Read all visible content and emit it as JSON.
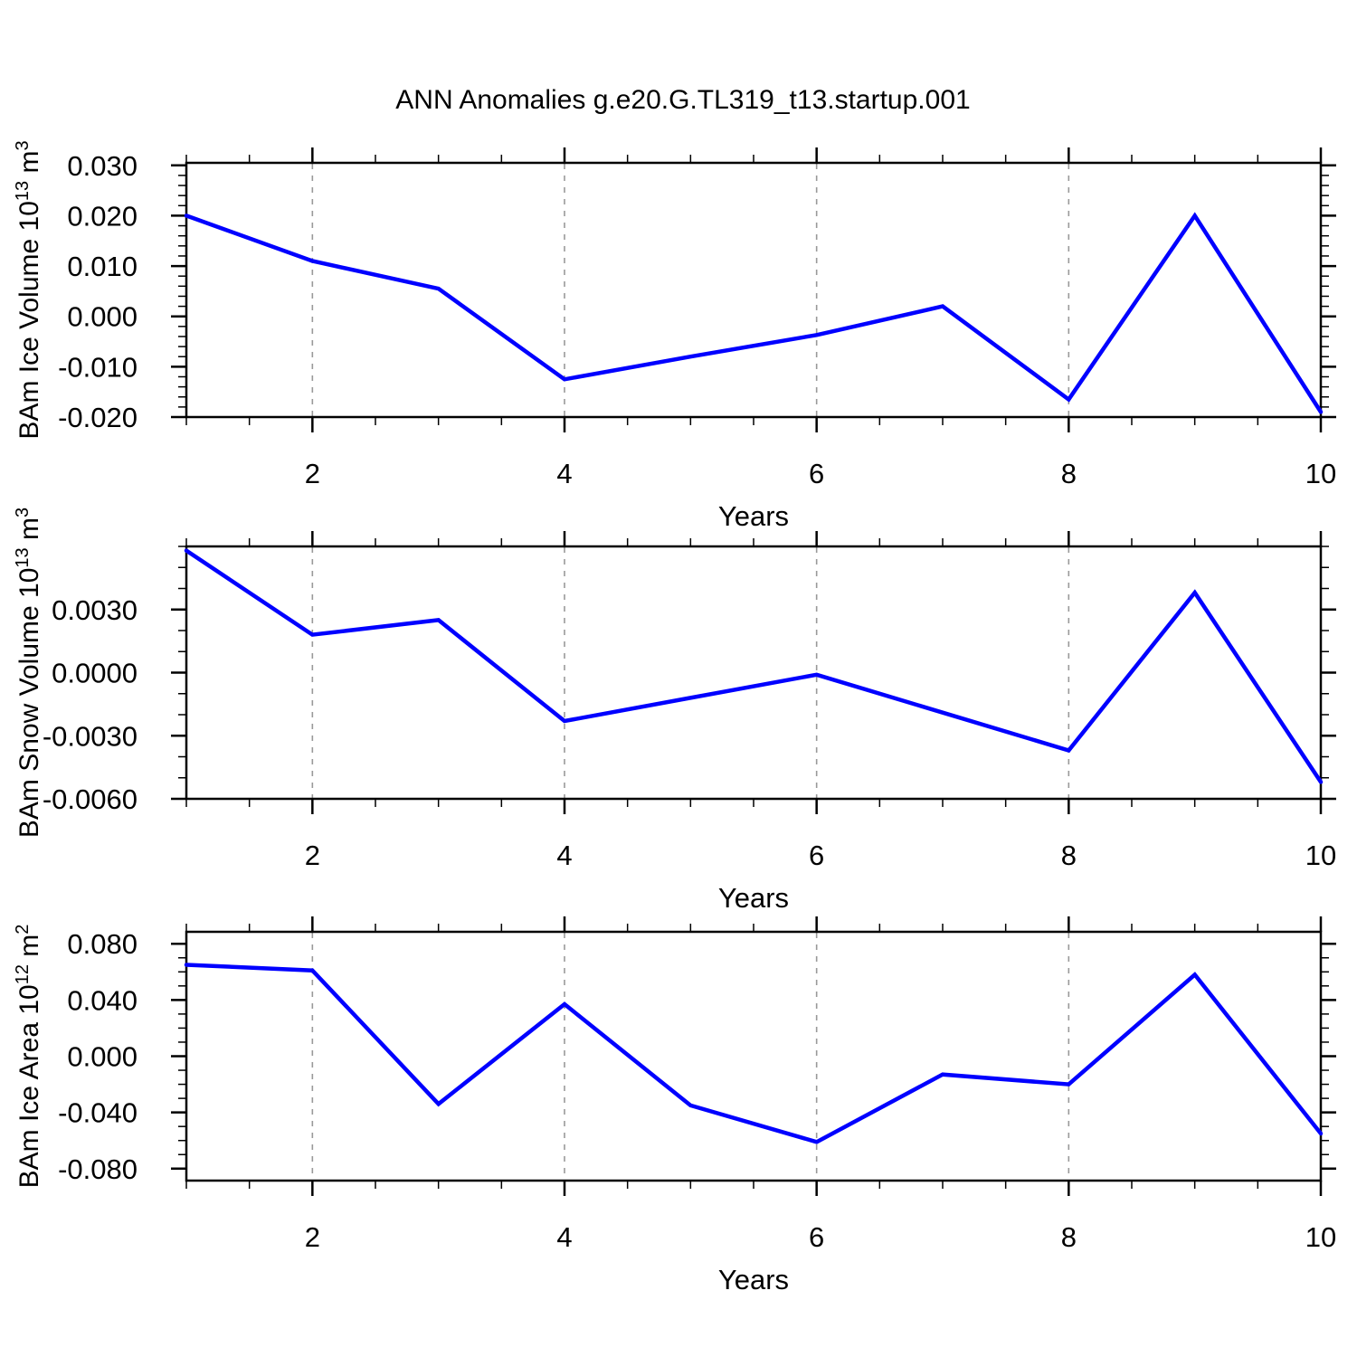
{
  "title": "ANN Anomalies g.e20.G.TL319_t13.startup.001",
  "colors": {
    "series": "#0000ff",
    "grid": "#999999",
    "axis": "#000000",
    "text": "#000000"
  },
  "chart_data": [
    {
      "type": "line",
      "name": "ice-volume",
      "x": [
        1,
        2,
        3,
        4,
        5,
        6,
        7,
        8,
        9,
        10
      ],
      "y": [
        0.02,
        0.011,
        0.0055,
        -0.0125,
        -0.008,
        -0.0037,
        0.002,
        -0.0165,
        0.02,
        -0.019
      ],
      "xlabel": "Years",
      "xlim": [
        1,
        10
      ],
      "xminor_step": 0.5,
      "grid_x": [
        2,
        4,
        6,
        8
      ],
      "xticks": [
        {
          "v": 2,
          "label": "2"
        },
        {
          "v": 4,
          "label": "4"
        },
        {
          "v": 6,
          "label": "6"
        },
        {
          "v": 8,
          "label": "8"
        },
        {
          "v": 10,
          "label": "10"
        }
      ],
      "ylim": [
        -0.02,
        0.0305
      ],
      "yminor_step": 0.002,
      "yticks": [
        {
          "v": 0.03,
          "label": "0.030"
        },
        {
          "v": 0.02,
          "label": "0.020"
        },
        {
          "v": 0.01,
          "label": "0.010"
        },
        {
          "v": 0.0,
          "label": "0.000"
        },
        {
          "v": -0.01,
          "label": "-0.010"
        },
        {
          "v": -0.02,
          "label": "-0.020"
        }
      ],
      "ylabel_segments": [
        {
          "t": "BAm Ice Volume 10"
        },
        {
          "t": "13",
          "sup": true
        },
        {
          "t": " m"
        },
        {
          "t": "3",
          "sup": true
        }
      ]
    },
    {
      "type": "line",
      "name": "snow-volume",
      "x": [
        1,
        2,
        3,
        4,
        5,
        6,
        7,
        8,
        9,
        10
      ],
      "y": [
        0.0058,
        0.0018,
        0.0025,
        -0.0023,
        -0.0012,
        -0.0001,
        -0.0019,
        -0.0037,
        0.0038,
        -0.0052
      ],
      "xlabel": "Years",
      "xlim": [
        1,
        10
      ],
      "xminor_step": 0.5,
      "grid_x": [
        2,
        4,
        6,
        8
      ],
      "xticks": [
        {
          "v": 2,
          "label": "2"
        },
        {
          "v": 4,
          "label": "4"
        },
        {
          "v": 6,
          "label": "6"
        },
        {
          "v": 8,
          "label": "8"
        },
        {
          "v": 10,
          "label": "10"
        }
      ],
      "ylim": [
        -0.006,
        0.006
      ],
      "yminor_step": 0.001,
      "yticks": [
        {
          "v": 0.003,
          "label": "0.0030"
        },
        {
          "v": 0.0,
          "label": "0.0000"
        },
        {
          "v": -0.003,
          "label": "-0.0030"
        },
        {
          "v": -0.006,
          "label": "-0.0060"
        }
      ],
      "ylabel_segments": [
        {
          "t": "BAm Snow Volume 10"
        },
        {
          "t": "13",
          "sup": true
        },
        {
          "t": " m"
        },
        {
          "t": "3",
          "sup": true
        }
      ]
    },
    {
      "type": "line",
      "name": "ice-area",
      "x": [
        1,
        2,
        3,
        4,
        5,
        6,
        7,
        8,
        9,
        10
      ],
      "y": [
        0.065,
        0.061,
        -0.034,
        0.037,
        -0.035,
        -0.061,
        -0.013,
        -0.02,
        0.058,
        -0.055
      ],
      "xlabel": "Years",
      "xlim": [
        1,
        10
      ],
      "xminor_step": 0.5,
      "grid_x": [
        2,
        4,
        6,
        8
      ],
      "xticks": [
        {
          "v": 2,
          "label": "2"
        },
        {
          "v": 4,
          "label": "4"
        },
        {
          "v": 6,
          "label": "6"
        },
        {
          "v": 8,
          "label": "8"
        },
        {
          "v": 10,
          "label": "10"
        }
      ],
      "ylim": [
        -0.0885,
        0.0885
      ],
      "yminor_step": 0.01,
      "yticks": [
        {
          "v": 0.08,
          "label": "0.080"
        },
        {
          "v": 0.04,
          "label": "0.040"
        },
        {
          "v": 0.0,
          "label": "0.000"
        },
        {
          "v": -0.04,
          "label": "-0.040"
        },
        {
          "v": -0.08,
          "label": "-0.080"
        }
      ],
      "ylabel_segments": [
        {
          "t": "BAm Ice Area 10"
        },
        {
          "t": "12",
          "sup": true
        },
        {
          "t": " m"
        },
        {
          "t": "2",
          "sup": true
        }
      ]
    }
  ]
}
